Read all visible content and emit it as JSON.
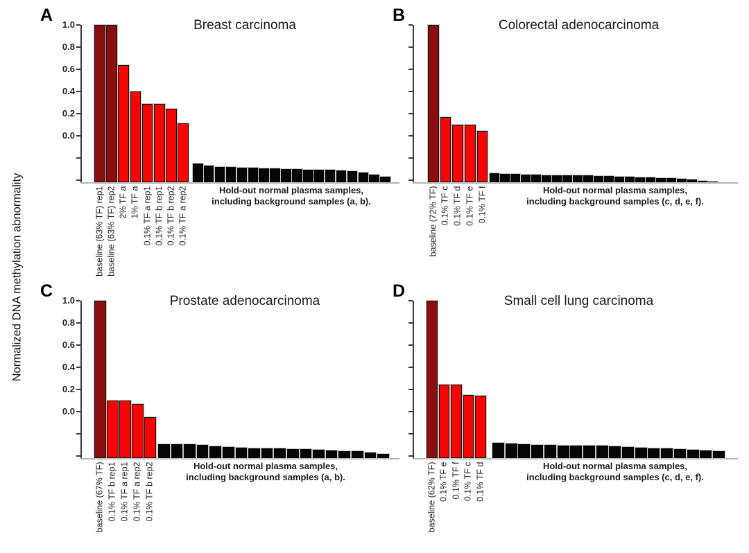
{
  "figure": {
    "y_axis_title": "Normalized DNA methylation abnormality",
    "background": "#ffffff",
    "colors": {
      "baseline_bar": "#8B0D0D",
      "dilution_bar": "#F50603",
      "normal_bar": "#060606",
      "value_axis": "#3a3a3a",
      "category_axis": "#b3b3b3",
      "text": "#1c1c1c"
    },
    "y_tick_labels": [
      "1.0",
      "0.8",
      "0.6",
      "0.4",
      "0.2",
      "0.0"
    ]
  },
  "chart_data": [
    {
      "panel": "A",
      "type": "bar",
      "title": "Breast carcinoma",
      "ylabel": "Normalized DNA methylation abnormality",
      "ylim": [
        -0.42,
        1.0
      ],
      "yticks_labeled": [
        1.0,
        0.8,
        0.6,
        0.4,
        0.2,
        0.0
      ],
      "yticks_unlabeled": [
        -0.2,
        -0.4
      ],
      "grid": false,
      "annotation": {
        "line1": "Hold-out normal plasma samples,",
        "line2": "including background samples (a, b)."
      },
      "labeled_bars": [
        {
          "label": "baseline (63% TF) rep1",
          "value": 1.0,
          "group": "baseline"
        },
        {
          "label": "baseline (63% TF) rep2",
          "value": 1.0,
          "group": "baseline"
        },
        {
          "label": "2% TF a",
          "value": 0.64,
          "group": "dilution"
        },
        {
          "label": "1% TF a",
          "value": 0.4,
          "group": "dilution"
        },
        {
          "label": "0.1% TF a rep1",
          "value": 0.29,
          "group": "dilution"
        },
        {
          "label": "0.1% TF b rep1",
          "value": 0.29,
          "group": "dilution"
        },
        {
          "label": "0.1% TF b rep2",
          "value": 0.24,
          "group": "dilution"
        },
        {
          "label": "0.1% TF a rep2",
          "value": 0.11,
          "group": "dilution"
        }
      ],
      "normal_bars": {
        "description": "Hold-out normal plasma samples, including background samples (a, b).",
        "values": [
          -0.25,
          -0.27,
          -0.285,
          -0.285,
          -0.29,
          -0.29,
          -0.295,
          -0.295,
          -0.3,
          -0.3,
          -0.305,
          -0.305,
          -0.31,
          -0.315,
          -0.32,
          -0.33,
          -0.35,
          -0.37
        ]
      }
    },
    {
      "panel": "B",
      "type": "bar",
      "title": "Colorectal adenocarcinoma",
      "ylabel": "Normalized DNA methylation abnormality",
      "ylim": [
        -0.42,
        1.0
      ],
      "yticks_labeled": [],
      "yticks_unlabeled": [
        1.0,
        0.8,
        0.6,
        0.4,
        0.2,
        0.0,
        -0.2,
        -0.4
      ],
      "grid": false,
      "annotation": {
        "line1": "Hold-out normal plasma samples,",
        "line2": "including background samples (c, d, e, f)."
      },
      "labeled_bars": [
        {
          "label": "baseline (72% TF)",
          "value": 1.0,
          "group": "baseline"
        },
        {
          "label": "0.1% TF c",
          "value": 0.17,
          "group": "dilution"
        },
        {
          "label": "0.1% TF d",
          "value": 0.1,
          "group": "dilution"
        },
        {
          "label": "0.1% TF e",
          "value": 0.1,
          "group": "dilution"
        },
        {
          "label": "0.1% TF f",
          "value": 0.04,
          "group": "dilution"
        }
      ],
      "normal_bars": {
        "description": "Hold-out normal plasma samples, including background samples (c, d, e, f).",
        "values": [
          -0.34,
          -0.345,
          -0.345,
          -0.35,
          -0.35,
          -0.355,
          -0.355,
          -0.36,
          -0.36,
          -0.36,
          -0.365,
          -0.365,
          -0.37,
          -0.37,
          -0.375,
          -0.375,
          -0.38,
          -0.385,
          -0.39,
          -0.395,
          -0.405,
          -0.415
        ]
      }
    },
    {
      "panel": "C",
      "type": "bar",
      "title": "Prostate adenocarcinoma",
      "ylabel": "Normalized DNA methylation abnormality",
      "ylim": [
        -0.42,
        1.0
      ],
      "yticks_labeled": [
        1.0,
        0.8,
        0.6,
        0.4,
        0.2,
        0.0
      ],
      "yticks_unlabeled": [
        -0.2,
        -0.4
      ],
      "grid": false,
      "annotation": {
        "line1": "Hold-out normal plasma samples,",
        "line2": "including background samples (a, b)."
      },
      "labeled_bars": [
        {
          "label": "baseline (67% TF)",
          "value": 1.0,
          "group": "baseline"
        },
        {
          "label": "0.1% TF b rep1",
          "value": 0.1,
          "group": "dilution"
        },
        {
          "label": "0.1% TF a rep1",
          "value": 0.1,
          "group": "dilution"
        },
        {
          "label": "0.1% TF a rep2",
          "value": 0.07,
          "group": "dilution"
        },
        {
          "label": "0.1% TF b rep2",
          "value": -0.05,
          "group": "dilution"
        }
      ],
      "normal_bars": {
        "description": "Hold-out normal plasma samples, including background samples (a, b).",
        "values": [
          -0.295,
          -0.295,
          -0.295,
          -0.3,
          -0.315,
          -0.32,
          -0.325,
          -0.33,
          -0.335,
          -0.335,
          -0.34,
          -0.34,
          -0.345,
          -0.35,
          -0.355,
          -0.36,
          -0.37,
          -0.385
        ]
      }
    },
    {
      "panel": "D",
      "type": "bar",
      "title": "Small cell lung carcinoma",
      "ylabel": "Normalized DNA methylation abnormality",
      "ylim": [
        -0.42,
        1.0
      ],
      "yticks_labeled": [],
      "yticks_unlabeled": [
        1.0,
        0.8,
        0.6,
        0.4,
        0.2,
        0.0,
        -0.2,
        -0.4
      ],
      "grid": false,
      "annotation": {
        "line1": "Hold-out normal plasma samples,",
        "line2": "including background samples (c, d, e, f)."
      },
      "labeled_bars": [
        {
          "label": "baseline (62% TF)",
          "value": 1.0,
          "group": "baseline"
        },
        {
          "label": "0.1% TF e",
          "value": 0.24,
          "group": "dilution"
        },
        {
          "label": "0.1% TF f",
          "value": 0.24,
          "group": "dilution"
        },
        {
          "label": "0.1% TF c",
          "value": 0.15,
          "group": "dilution"
        },
        {
          "label": "0.1% TF d",
          "value": 0.14,
          "group": "dilution"
        }
      ],
      "normal_bars": {
        "description": "Hold-out normal plasma samples, including background samples (c, d, e, f).",
        "values": [
          -0.28,
          -0.29,
          -0.295,
          -0.3,
          -0.3,
          -0.305,
          -0.305,
          -0.31,
          -0.31,
          -0.315,
          -0.32,
          -0.325,
          -0.33,
          -0.335,
          -0.34,
          -0.345,
          -0.35,
          -0.36
        ]
      }
    }
  ]
}
